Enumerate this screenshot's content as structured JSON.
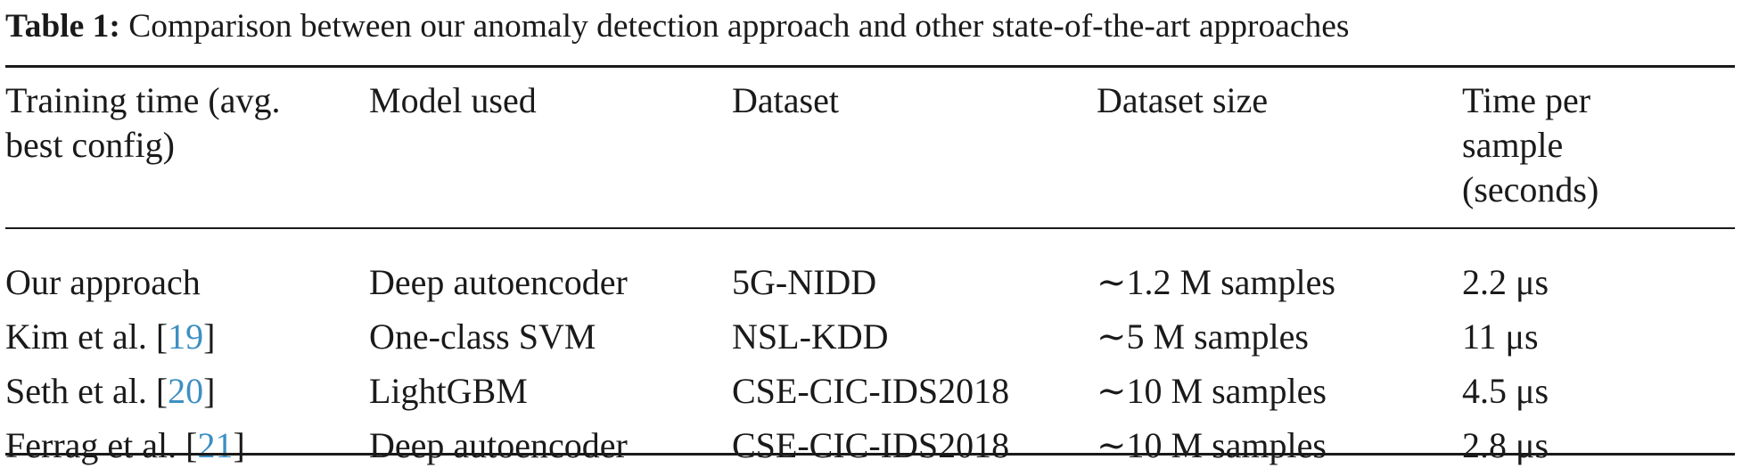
{
  "caption": {
    "label": "Table 1:",
    "text": "Comparison between our anomaly detection approach and other state-of-the-art approaches"
  },
  "table": {
    "headers": [
      [
        "Training time (avg.",
        "best config)"
      ],
      [
        "Model used"
      ],
      [
        "Dataset"
      ],
      [
        "Dataset size"
      ],
      [
        "Time per",
        "sample",
        "(seconds)"
      ]
    ],
    "rows": [
      {
        "name": "Our approach",
        "ref": "",
        "model": "Deep autoencoder",
        "dataset": "5G-NIDD",
        "size": "∼1.2 M samples",
        "time": "2.2 μs"
      },
      {
        "name": "Kim et al. [",
        "ref": "19",
        "close": "]",
        "model": "One-class SVM",
        "dataset": "NSL-KDD",
        "size": "∼5 M samples",
        "time": "11 μs"
      },
      {
        "name": "Seth et al. [",
        "ref": "20",
        "close": "]",
        "model": "LightGBM",
        "dataset": "CSE-CIC-IDS2018",
        "size": "∼10 M samples",
        "time": "4.5 μs"
      },
      {
        "name": "Ferrag et al. [",
        "ref": "21",
        "close": "]",
        "model": "Deep autoencoder",
        "dataset": "CSE-CIC-IDS2018",
        "size": "∼10 M samples",
        "time": "2.8 μs"
      }
    ],
    "colors": {
      "ref_link": "#3d8fc2",
      "text": "#1a1a1a",
      "rule": "#1a1a1a"
    }
  }
}
